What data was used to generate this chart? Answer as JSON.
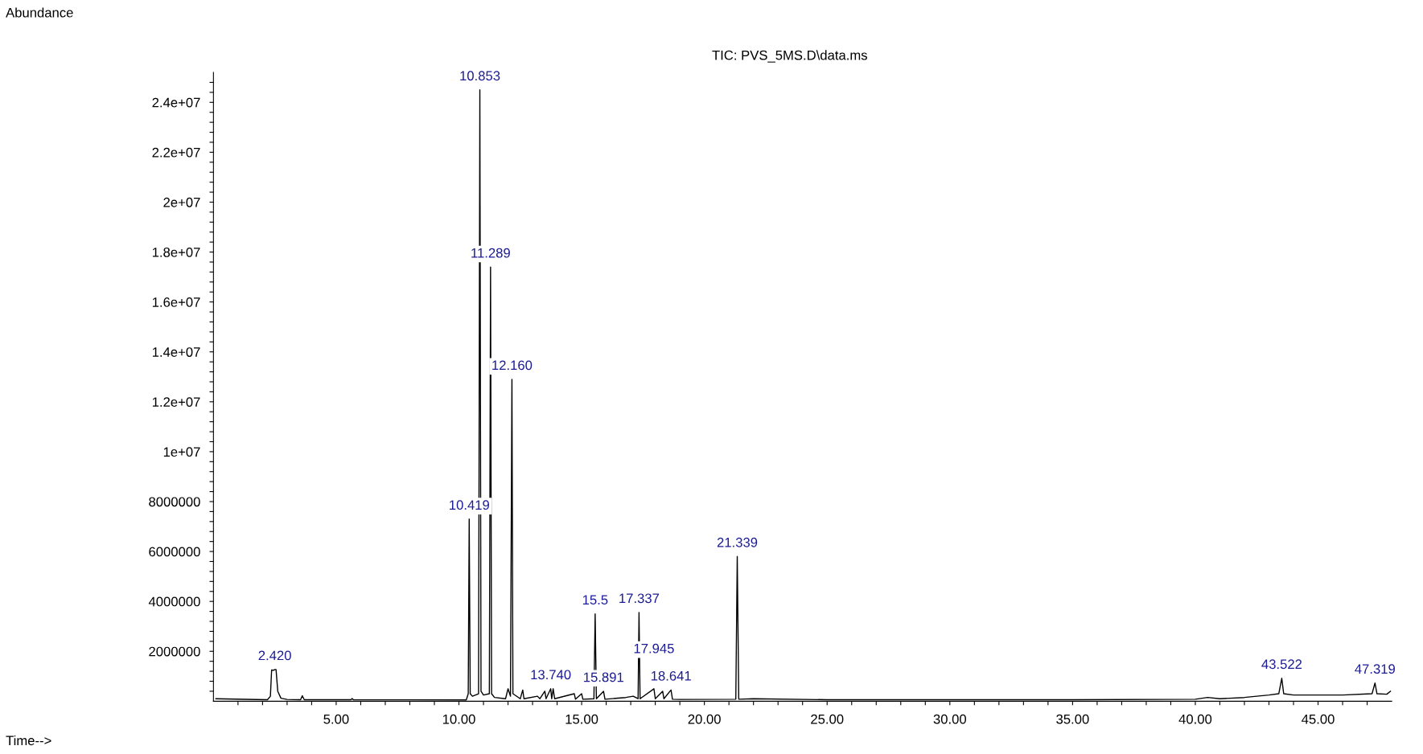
{
  "chart_data": {
    "type": "line",
    "title": "TIC: PVS_5MS.D\\data.ms",
    "x": [
      0.1,
      2.2,
      2.32,
      2.37,
      2.45,
      2.5,
      2.55,
      2.62,
      2.75,
      3.0,
      3.55,
      3.62,
      3.7,
      5.6,
      5.65,
      5.7,
      10.3,
      10.38,
      10.419,
      10.46,
      10.55,
      10.8,
      10.853,
      10.9,
      11.0,
      11.24,
      11.289,
      11.33,
      11.45,
      11.9,
      12.0,
      12.1,
      12.16,
      12.2,
      12.5,
      12.6,
      12.65,
      13.2,
      13.3,
      13.5,
      13.55,
      13.74,
      13.78,
      13.84,
      13.9,
      14.7,
      14.75,
      15.0,
      15.05,
      15.5,
      15.55,
      15.6,
      15.891,
      15.95,
      16.8,
      17.1,
      17.3,
      17.337,
      17.38,
      17.945,
      18.0,
      18.3,
      18.35,
      18.641,
      18.7,
      19.0,
      21.28,
      21.339,
      21.4,
      22.0,
      25.0,
      30.0,
      35.0,
      40.0,
      40.5,
      41.0,
      42.0,
      43.0,
      43.4,
      43.522,
      43.6,
      44.0,
      46.0,
      47.2,
      47.319,
      47.4,
      47.8,
      47.95
    ],
    "series": [
      {
        "color": "#000000",
        "values": [
          100000,
          60000,
          200000,
          1250000,
          1240000,
          1270000,
          1270000,
          400000,
          120000,
          70000,
          60000,
          220000,
          60000,
          60000,
          110000,
          60000,
          50000,
          300000,
          7300000,
          300000,
          200000,
          300000,
          24500000,
          400000,
          250000,
          300000,
          17400000,
          300000,
          150000,
          100000,
          500000,
          200000,
          12900000,
          300000,
          100000,
          450000,
          100000,
          200000,
          100000,
          400000,
          100000,
          500000,
          100000,
          500000,
          100000,
          300000,
          80000,
          300000,
          80000,
          100000,
          3500000,
          100000,
          400000,
          80000,
          150000,
          200000,
          100000,
          3560000,
          100000,
          500000,
          100000,
          400000,
          100000,
          450000,
          80000,
          70000,
          80000,
          5800000,
          80000,
          100000,
          60000,
          60000,
          60000,
          80000,
          150000,
          100000,
          150000,
          250000,
          300000,
          920000,
          300000,
          250000,
          250000,
          300000,
          730000,
          300000,
          280000,
          400000
        ]
      }
    ],
    "xlim": [
      0,
      48
    ],
    "xticks": [
      {
        "value": 1,
        "label": null
      },
      {
        "value": 2,
        "label": null
      },
      {
        "value": 3,
        "label": null
      },
      {
        "value": 4,
        "label": null
      },
      {
        "value": 5,
        "label": "5.00"
      },
      {
        "value": 6,
        "label": null
      },
      {
        "value": 7,
        "label": null
      },
      {
        "value": 8,
        "label": null
      },
      {
        "value": 9,
        "label": null
      },
      {
        "value": 10,
        "label": "10.00"
      },
      {
        "value": 11,
        "label": null
      },
      {
        "value": 12,
        "label": null
      },
      {
        "value": 13,
        "label": null
      },
      {
        "value": 14,
        "label": null
      },
      {
        "value": 15,
        "label": "15.00"
      },
      {
        "value": 16,
        "label": null
      },
      {
        "value": 17,
        "label": null
      },
      {
        "value": 18,
        "label": null
      },
      {
        "value": 19,
        "label": null
      },
      {
        "value": 20,
        "label": "20.00"
      },
      {
        "value": 21,
        "label": null
      },
      {
        "value": 22,
        "label": null
      },
      {
        "value": 23,
        "label": null
      },
      {
        "value": 24,
        "label": null
      },
      {
        "value": 25,
        "label": "25.00"
      },
      {
        "value": 26,
        "label": null
      },
      {
        "value": 27,
        "label": null
      },
      {
        "value": 28,
        "label": null
      },
      {
        "value": 29,
        "label": null
      },
      {
        "value": 30,
        "label": "30.00"
      },
      {
        "value": 31,
        "label": null
      },
      {
        "value": 32,
        "label": null
      },
      {
        "value": 33,
        "label": null
      },
      {
        "value": 34,
        "label": null
      },
      {
        "value": 35,
        "label": "35.00"
      },
      {
        "value": 36,
        "label": null
      },
      {
        "value": 37,
        "label": null
      },
      {
        "value": 38,
        "label": null
      },
      {
        "value": 39,
        "label": null
      },
      {
        "value": 40,
        "label": "40.00"
      },
      {
        "value": 41,
        "label": null
      },
      {
        "value": 42,
        "label": null
      },
      {
        "value": 43,
        "label": null
      },
      {
        "value": 44,
        "label": null
      },
      {
        "value": 45,
        "label": "45.00"
      },
      {
        "value": 46,
        "label": null
      },
      {
        "value": 47,
        "label": null
      }
    ],
    "ylim": [
      0,
      25200000
    ],
    "yticks": [
      {
        "value": 400000,
        "label": null
      },
      {
        "value": 800000,
        "label": null
      },
      {
        "value": 1200000,
        "label": null
      },
      {
        "value": 1600000,
        "label": null
      },
      2000000,
      {
        "value": 2400000,
        "label": null
      },
      {
        "value": 2800000,
        "label": null
      },
      {
        "value": 3200000,
        "label": null
      },
      {
        "value": 3600000,
        "label": null
      },
      4000000,
      {
        "value": 4400000,
        "label": null
      },
      {
        "value": 4800000,
        "label": null
      },
      {
        "value": 5200000,
        "label": null
      },
      {
        "value": 5600000,
        "label": null
      },
      6000000,
      {
        "value": 6400000,
        "label": null
      },
      {
        "value": 6800000,
        "label": null
      },
      {
        "value": 7200000,
        "label": null
      },
      {
        "value": 7600000,
        "label": null
      },
      8000000,
      {
        "value": 8400000,
        "label": null
      },
      {
        "value": 8800000,
        "label": null
      },
      {
        "value": 9200000,
        "label": null
      },
      {
        "value": 9600000,
        "label": null
      },
      {
        "value": 10000000,
        "label": "1e+07"
      },
      {
        "value": 10400000,
        "label": null
      },
      {
        "value": 10800000,
        "label": null
      },
      {
        "value": 11200000,
        "label": null
      },
      {
        "value": 11600000,
        "label": null
      },
      {
        "value": 12000000,
        "label": "1.2e+07"
      },
      {
        "value": 12400000,
        "label": null
      },
      {
        "value": 12800000,
        "label": null
      },
      {
        "value": 13200000,
        "label": null
      },
      {
        "value": 13600000,
        "label": null
      },
      {
        "value": 14000000,
        "label": "1.4e+07"
      },
      {
        "value": 14400000,
        "label": null
      },
      {
        "value": 14800000,
        "label": null
      },
      {
        "value": 15200000,
        "label": null
      },
      {
        "value": 15600000,
        "label": null
      },
      {
        "value": 16000000,
        "label": "1.6e+07"
      },
      {
        "value": 16400000,
        "label": null
      },
      {
        "value": 16800000,
        "label": null
      },
      {
        "value": 17200000,
        "label": null
      },
      {
        "value": 17600000,
        "label": null
      },
      {
        "value": 18000000,
        "label": "1.8e+07"
      },
      {
        "value": 18400000,
        "label": null
      },
      {
        "value": 18800000,
        "label": null
      },
      {
        "value": 19200000,
        "label": null
      },
      {
        "value": 19600000,
        "label": null
      },
      {
        "value": 20000000,
        "label": "2e+07"
      },
      {
        "value": 20400000,
        "label": null
      },
      {
        "value": 20800000,
        "label": null
      },
      {
        "value": 21200000,
        "label": null
      },
      {
        "value": 21600000,
        "label": null
      },
      {
        "value": 22000000,
        "label": "2.2e+07"
      },
      {
        "value": 22400000,
        "label": null
      },
      {
        "value": 22800000,
        "label": null
      },
      {
        "value": 23200000,
        "label": null
      },
      {
        "value": 23600000,
        "label": null
      },
      {
        "value": 24000000,
        "label": "2.4e+07"
      },
      {
        "value": 24400000,
        "label": null
      },
      {
        "value": 24800000,
        "label": null
      }
    ],
    "grid": false,
    "legend": false,
    "marker": "none",
    "line_style": "solid",
    "annotations": [
      "Abundance",
      "Time-->",
      {
        "text": "2.420",
        "x": 2.5,
        "y": 1270000
      },
      {
        "text": "10.419",
        "x": 10.419,
        "y": 7300000
      },
      {
        "text": "10.853",
        "x": 10.853,
        "y": 24500000
      },
      {
        "text": "11.289",
        "x": 11.289,
        "y": 17400000
      },
      {
        "text": "12.160",
        "x": 12.16,
        "y": 12900000
      },
      {
        "text": "13.740",
        "x": 13.74,
        "y": 500000
      },
      {
        "text": "15.5",
        "x": 15.55,
        "y": 3500000
      },
      {
        "text": "15.891",
        "x": 15.891,
        "y": 400000
      },
      {
        "text": "17.337",
        "x": 17.337,
        "y": 3560000
      },
      {
        "text": "18.641",
        "x": 18.641,
        "y": 450000
      },
      {
        "text": "17.945",
        "x": 17.945,
        "y": 500000
      },
      {
        "text": "21.339",
        "x": 21.339,
        "y": 5800000
      },
      {
        "text": "43.522",
        "x": 43.522,
        "y": 920000
      },
      {
        "text": "47.319",
        "x": 47.319,
        "y": 730000
      }
    ]
  }
}
